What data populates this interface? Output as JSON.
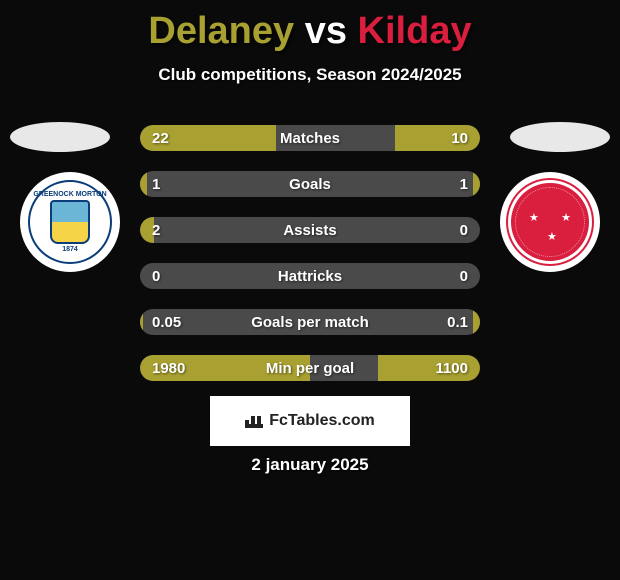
{
  "title": {
    "player1": "Delaney",
    "player2": "Kilday",
    "vs": "vs",
    "color1": "#a8a030",
    "color2": "#d91e3e",
    "vs_color": "#ffffff"
  },
  "subtitle": "Club competitions, Season 2024/2025",
  "badges": {
    "left_year": "1874"
  },
  "stats": {
    "bar_color_left": "#a8a030",
    "bar_color_right": "#a8a030",
    "empty_color": "#4a4a4a",
    "rows": [
      {
        "label": "Matches",
        "vL": "22",
        "vR": "10",
        "pctL": 40,
        "pctR": 25
      },
      {
        "label": "Goals",
        "vL": "1",
        "vR": "1",
        "pctL": 2,
        "pctR": 2
      },
      {
        "label": "Assists",
        "vL": "2",
        "vR": "0",
        "pctL": 4,
        "pctR": 0
      },
      {
        "label": "Hattricks",
        "vL": "0",
        "vR": "0",
        "pctL": 0,
        "pctR": 0
      },
      {
        "label": "Goals per match",
        "vL": "0.05",
        "vR": "0.1",
        "pctL": 1,
        "pctR": 2
      },
      {
        "label": "Min per goal",
        "vL": "1980",
        "vR": "1100",
        "pctL": 50,
        "pctR": 30
      }
    ]
  },
  "brand": "FcTables.com",
  "date": "2 january 2025"
}
